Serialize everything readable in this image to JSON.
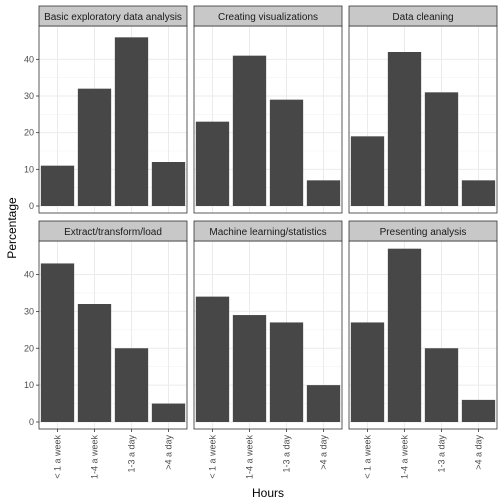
{
  "chart_data": {
    "type": "bar",
    "xlabel": "Hours",
    "ylabel": "Percentage",
    "categories": [
      "< 1 a week",
      "1-4 a week",
      "1-3 a day",
      ">4 a day"
    ],
    "yticks": [
      0,
      10,
      20,
      30,
      40
    ],
    "ylim": [
      0,
      48
    ],
    "grid": true,
    "bar_color": "#474747",
    "strip_color": "#c8c8c8",
    "panels": [
      {
        "name": "Basic exploratory data analysis",
        "values": [
          11,
          32,
          46,
          12
        ]
      },
      {
        "name": "Creating visualizations",
        "values": [
          23,
          41,
          29,
          7
        ]
      },
      {
        "name": "Data cleaning",
        "values": [
          19,
          42,
          31,
          7
        ]
      },
      {
        "name": "Extract/transform/load",
        "values": [
          43,
          32,
          20,
          5
        ]
      },
      {
        "name": "Machine learning/statistics",
        "values": [
          34,
          29,
          27,
          10
        ]
      },
      {
        "name": "Presenting analysis",
        "values": [
          27,
          47,
          20,
          6
        ]
      }
    ]
  }
}
